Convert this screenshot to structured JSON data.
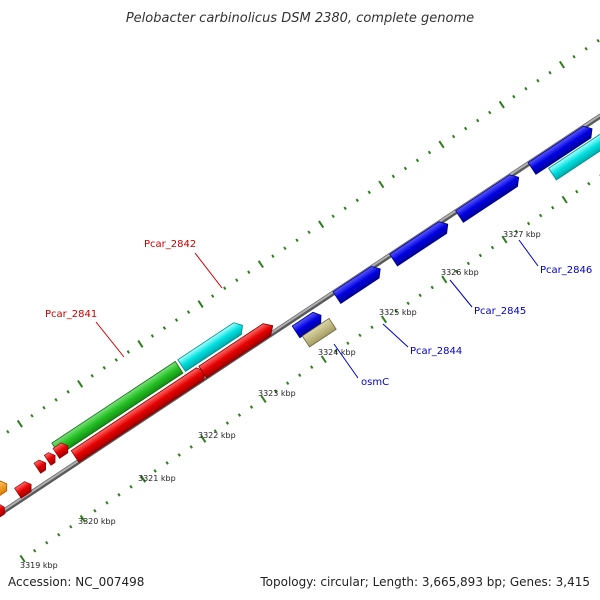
{
  "title": "Pelobacter carbinolicus DSM 2380, complete genome",
  "footer": {
    "accession": "Accession: NC_007498",
    "summary": "Topology: circular; Length: 3,665,893 bp; Genes: 3,415"
  },
  "scale_ticks": [
    "3319 kbp",
    "3320 kbp",
    "3321 kbp",
    "3322 kbp",
    "3323 kbp",
    "3324 kbp",
    "3325 kbp",
    "3326 kbp",
    "3327 kbp"
  ],
  "gene_labels": [
    {
      "id": "pcar2842",
      "text": "Pcar_2842",
      "color": "#cc0000"
    },
    {
      "id": "pcar2841",
      "text": "Pcar_2841",
      "color": "#cc0000"
    },
    {
      "id": "osmc",
      "text": "osmC",
      "color": "#0000cc"
    },
    {
      "id": "pcar2844",
      "text": "Pcar_2844",
      "color": "#0000cc"
    },
    {
      "id": "pcar2845",
      "text": "Pcar_2845",
      "color": "#0000cc"
    },
    {
      "id": "pcar2846",
      "text": "Pcar_2846",
      "color": "#0000cc"
    }
  ],
  "colors": {
    "backbone": "#8c8c8c",
    "tick": "#2e7d1e",
    "cds_forward": "#e60000",
    "cds_reverse": "#0000e0",
    "rna": "#22c022",
    "cyan_feature": "#00e0e0",
    "orange_feature": "#ff9900",
    "tan_feature": "#c0b878"
  }
}
